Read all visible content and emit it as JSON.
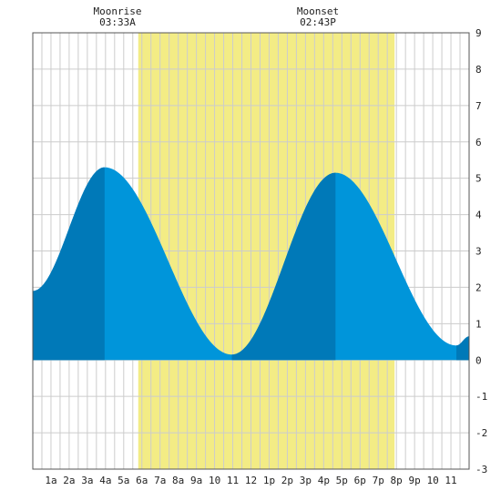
{
  "header": {
    "moonrise_label": "Moonrise",
    "moonrise_time": "03:33A",
    "moonset_label": "Moonset",
    "moonset_time": "02:43P"
  },
  "colors": {
    "background": "#ffffff",
    "grid": "#cccccc",
    "daylight": "#f3ec85",
    "tide_light": "#0095da",
    "tide_dark": "#0079b8",
    "border": "#555555"
  },
  "chart_data": {
    "type": "area",
    "title": "",
    "xlabel": "",
    "ylabel": "",
    "xlim": [
      0,
      24
    ],
    "ylim": [
      -3,
      9
    ],
    "grid": true,
    "y_ticks": [
      "-3",
      "-2",
      "-1",
      "0",
      "1",
      "2",
      "3",
      "4",
      "5",
      "6",
      "7",
      "8",
      "9"
    ],
    "x_ticks": [
      {
        "x": 1,
        "label": "1a"
      },
      {
        "x": 2,
        "label": "2a"
      },
      {
        "x": 3,
        "label": "3a"
      },
      {
        "x": 4,
        "label": "4a"
      },
      {
        "x": 5,
        "label": "5a"
      },
      {
        "x": 6,
        "label": "6a"
      },
      {
        "x": 7,
        "label": "7a"
      },
      {
        "x": 8,
        "label": "8a"
      },
      {
        "x": 9,
        "label": "9a"
      },
      {
        "x": 10,
        "label": "10"
      },
      {
        "x": 11,
        "label": "11"
      },
      {
        "x": 12,
        "label": "12"
      },
      {
        "x": 13,
        "label": "1p"
      },
      {
        "x": 14,
        "label": "2p"
      },
      {
        "x": 15,
        "label": "3p"
      },
      {
        "x": 16,
        "label": "4p"
      },
      {
        "x": 17,
        "label": "5p"
      },
      {
        "x": 18,
        "label": "6p"
      },
      {
        "x": 19,
        "label": "7p"
      },
      {
        "x": 20,
        "label": "8p"
      },
      {
        "x": 21,
        "label": "9p"
      },
      {
        "x": 22,
        "label": "10"
      },
      {
        "x": 23,
        "label": "11"
      }
    ],
    "daylight": [
      5.8,
      19.9
    ],
    "tide_extrema": [
      {
        "x": 0.0,
        "y": 1.9
      },
      {
        "x": 3.95,
        "y": 5.3
      },
      {
        "x": 10.95,
        "y": 0.15
      },
      {
        "x": 16.65,
        "y": 5.15
      },
      {
        "x": 23.3,
        "y": 0.4
      },
      {
        "x": 24.0,
        "y": 0.65
      }
    ],
    "dark_bands": [
      [
        0,
        3.95
      ],
      [
        10.95,
        16.65
      ],
      [
        23.3,
        24
      ]
    ]
  }
}
